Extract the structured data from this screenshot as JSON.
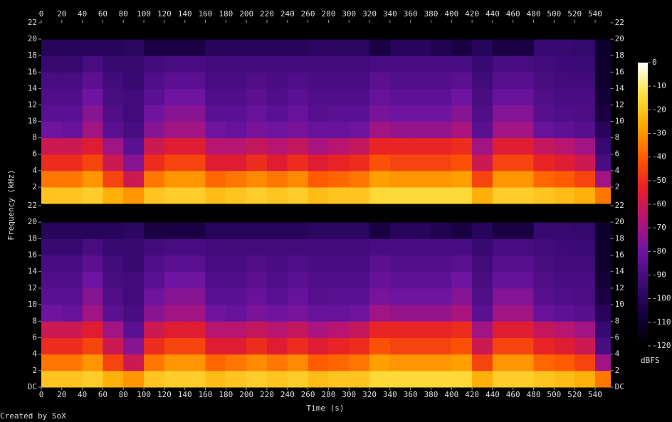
{
  "chart_data": {
    "type": "spectrogram",
    "x_label": "Time (s)",
    "y_label": "Frequency (kHz)",
    "credit": "Created by SoX",
    "xlim": [
      0,
      555
    ],
    "xticks": [
      0,
      20,
      40,
      60,
      80,
      100,
      120,
      140,
      160,
      180,
      200,
      220,
      240,
      260,
      280,
      300,
      320,
      340,
      360,
      380,
      400,
      420,
      440,
      460,
      480,
      500,
      520,
      540
    ],
    "channels": [
      {
        "ylim": [
          0,
          22
        ],
        "yticks": [
          2,
          4,
          6,
          8,
          10,
          12,
          14,
          16,
          18,
          20,
          22
        ]
      },
      {
        "ylim": [
          0,
          22
        ],
        "yticks": [
          {
            "value": 0,
            "label": "DC"
          },
          2,
          4,
          6,
          8,
          10,
          12,
          14,
          16,
          18,
          20,
          22
        ]
      }
    ],
    "time_bins": [
      0,
      20,
      40,
      60,
      80,
      100,
      120,
      140,
      160,
      180,
      200,
      220,
      240,
      260,
      280,
      300,
      320,
      340,
      360,
      380,
      400,
      420,
      440,
      460,
      480,
      500,
      520,
      540,
      555
    ],
    "freq_bins": [
      0,
      2,
      4,
      6,
      8,
      10,
      12,
      14,
      16,
      18,
      20,
      22
    ],
    "levels": [
      [
        -20,
        -35,
        -50,
        -60,
        -80,
        -85,
        -88,
        -90,
        -95,
        -100,
        -120
      ],
      [
        -20,
        -35,
        -50,
        -60,
        -82,
        -85,
        -88,
        -90,
        -95,
        -100,
        -120
      ],
      [
        -18,
        -30,
        -45,
        -55,
        -70,
        -75,
        -80,
        -85,
        -90,
        -100,
        -120
      ],
      [
        -25,
        -45,
        -60,
        -70,
        -85,
        -88,
        -90,
        -92,
        -95,
        -100,
        -120
      ],
      [
        -30,
        -60,
        -75,
        -85,
        -90,
        -92,
        -92,
        -95,
        -95,
        -98,
        -120
      ],
      [
        -20,
        -35,
        -50,
        -60,
        -75,
        -80,
        -85,
        -88,
        -92,
        -105,
        -120
      ],
      [
        -18,
        -30,
        -45,
        -55,
        -70,
        -75,
        -80,
        -85,
        -90,
        -105,
        -120
      ],
      [
        -18,
        -30,
        -45,
        -55,
        -70,
        -75,
        -80,
        -85,
        -90,
        -105,
        -120
      ],
      [
        -22,
        -38,
        -55,
        -65,
        -80,
        -85,
        -88,
        -90,
        -92,
        -100,
        -120
      ],
      [
        -20,
        -35,
        -55,
        -65,
        -82,
        -85,
        -88,
        -90,
        -92,
        -100,
        -120
      ],
      [
        -18,
        -32,
        -50,
        -62,
        -78,
        -82,
        -85,
        -88,
        -92,
        -100,
        -120
      ],
      [
        -20,
        -35,
        -55,
        -65,
        -80,
        -85,
        -88,
        -90,
        -92,
        -100,
        -120
      ],
      [
        -18,
        -32,
        -50,
        -62,
        -78,
        -82,
        -85,
        -88,
        -92,
        -100,
        -120
      ],
      [
        -22,
        -40,
        -55,
        -68,
        -82,
        -86,
        -88,
        -90,
        -92,
        -98,
        -120
      ],
      [
        -20,
        -38,
        -52,
        -65,
        -82,
        -85,
        -88,
        -90,
        -92,
        -98,
        -120
      ],
      [
        -20,
        -35,
        -50,
        -62,
        -80,
        -85,
        -88,
        -90,
        -92,
        -98,
        -120
      ],
      [
        -15,
        -28,
        -42,
        -52,
        -70,
        -78,
        -82,
        -85,
        -90,
        -105,
        -120
      ],
      [
        -15,
        -30,
        -45,
        -52,
        -72,
        -80,
        -84,
        -87,
        -90,
        -100,
        -120
      ],
      [
        -15,
        -30,
        -45,
        -52,
        -72,
        -80,
        -84,
        -87,
        -90,
        -100,
        -120
      ],
      [
        -15,
        -30,
        -45,
        -52,
        -72,
        -80,
        -84,
        -87,
        -90,
        -102,
        -120
      ],
      [
        -15,
        -28,
        -42,
        -50,
        -68,
        -75,
        -80,
        -85,
        -90,
        -105,
        -120
      ],
      [
        -25,
        -45,
        -60,
        -70,
        -85,
        -88,
        -90,
        -92,
        -95,
        -100,
        -120
      ],
      [
        -18,
        -30,
        -45,
        -55,
        -70,
        -76,
        -82,
        -86,
        -90,
        -105,
        -120
      ],
      [
        -18,
        -30,
        -45,
        -55,
        -70,
        -76,
        -82,
        -86,
        -90,
        -105,
        -120
      ],
      [
        -20,
        -38,
        -52,
        -62,
        -82,
        -86,
        -88,
        -90,
        -92,
        -95,
        -120
      ],
      [
        -22,
        -40,
        -55,
        -65,
        -84,
        -88,
        -90,
        -92,
        -93,
        -95,
        -120
      ],
      [
        -25,
        -45,
        -60,
        -70,
        -86,
        -89,
        -90,
        -92,
        -94,
        -96,
        -120
      ],
      [
        -35,
        -70,
        -90,
        -95,
        -100,
        -105,
        -108,
        -110,
        -110,
        -110,
        -120
      ]
    ],
    "colorbar": {
      "label": "dBFS",
      "lim": [
        -120,
        0
      ],
      "ticks": [
        0,
        -10,
        -20,
        -30,
        -40,
        -50,
        -60,
        -70,
        -80,
        -90,
        -100,
        -110,
        -120
      ]
    },
    "colormap": [
      "#000000",
      "#14003c",
      "#3c0a78",
      "#6e14a0",
      "#b0147a",
      "#e61e28",
      "#ff5a00",
      "#ffa800",
      "#ffe040",
      "#ffffff"
    ]
  }
}
